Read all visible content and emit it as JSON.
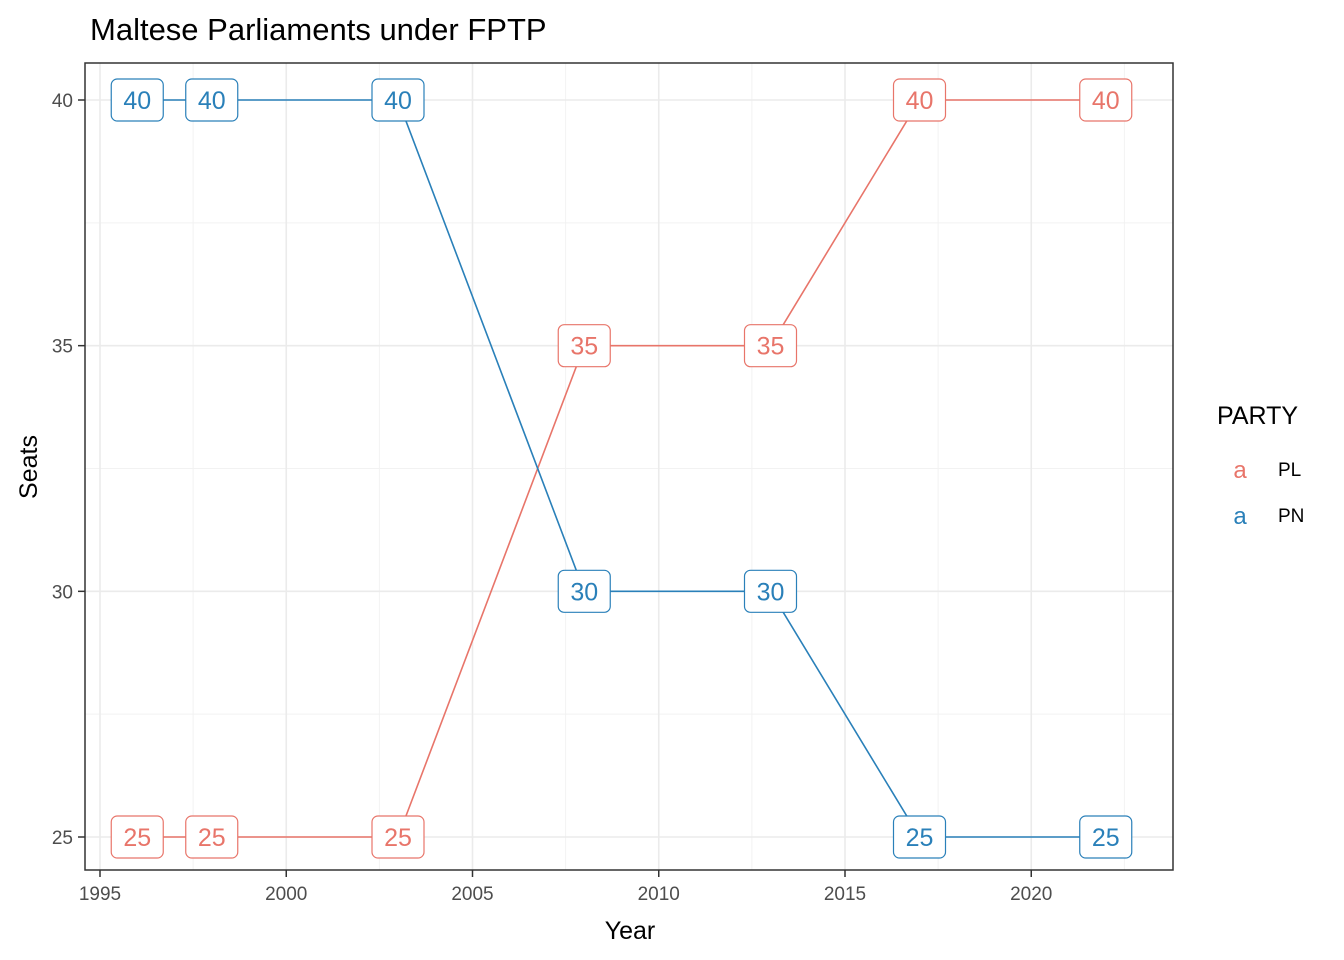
{
  "chart_data": {
    "type": "line",
    "title": "Maltese Parliaments under FPTP",
    "xlabel": "Year",
    "ylabel": "Seats",
    "xlim": [
      1995,
      2023
    ],
    "ylim": [
      25,
      40
    ],
    "x_ticks": [
      1995,
      2000,
      2005,
      2010,
      2015,
      2020
    ],
    "y_ticks": [
      25,
      30,
      35,
      40
    ],
    "grid": true,
    "legend": {
      "title": "PARTY",
      "position": "right",
      "key_glyph": "a"
    },
    "series": [
      {
        "name": "PL",
        "color": "#E8756A",
        "x": [
          1996,
          1998,
          2003,
          2008,
          2013,
          2017,
          2022
        ],
        "values": [
          25,
          25,
          25,
          35,
          35,
          40,
          40
        ]
      },
      {
        "name": "PN",
        "color": "#2A80B9",
        "x": [
          1996,
          1998,
          2003,
          2008,
          2013,
          2017,
          2022
        ],
        "values": [
          40,
          40,
          40,
          30,
          30,
          25,
          25
        ]
      }
    ]
  }
}
